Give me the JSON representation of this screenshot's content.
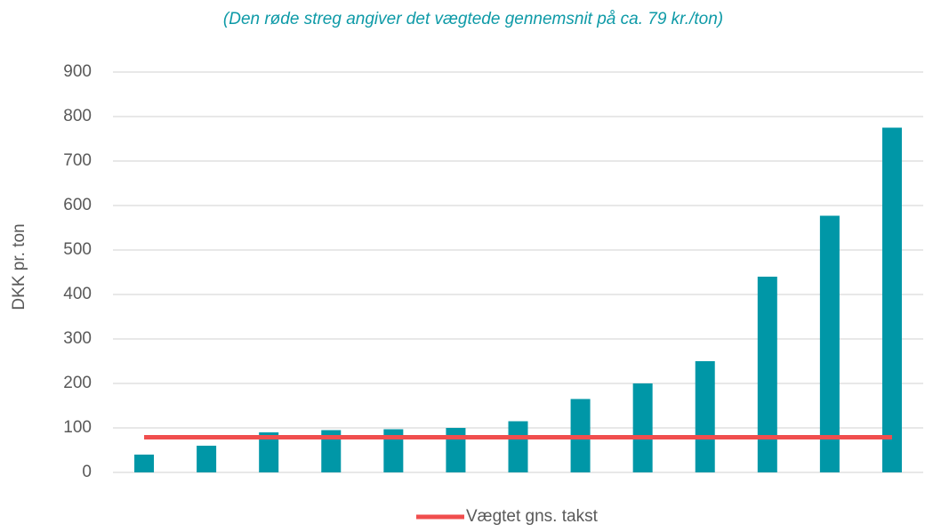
{
  "chart_data": {
    "type": "bar",
    "title": "(Den røde streg angiver det vægtede gennemsnit på ca. 79 kr./ton)",
    "y_label": "DKK pr. ton",
    "categories": [
      null,
      null,
      null,
      null,
      null,
      null,
      null,
      null,
      null,
      null,
      null,
      null,
      null
    ],
    "series": [
      {
        "type": "bar",
        "color": "#0097a7",
        "values": [
          40,
          60,
          90,
          95,
          97,
          100,
          115,
          165,
          200,
          250,
          440,
          577,
          775
        ]
      },
      {
        "type": "line",
        "name": "Vægtet gns. takst",
        "color": "#f04e4e",
        "values": [
          79,
          79,
          79,
          79,
          79,
          79,
          79,
          79,
          79,
          79,
          79,
          79,
          79
        ]
      }
    ],
    "ylim": [
      0,
      900
    ],
    "yticks": [
      0,
      100,
      200,
      300,
      400,
      500,
      600,
      700,
      800,
      900
    ],
    "grid": true,
    "legend": "bottom"
  }
}
